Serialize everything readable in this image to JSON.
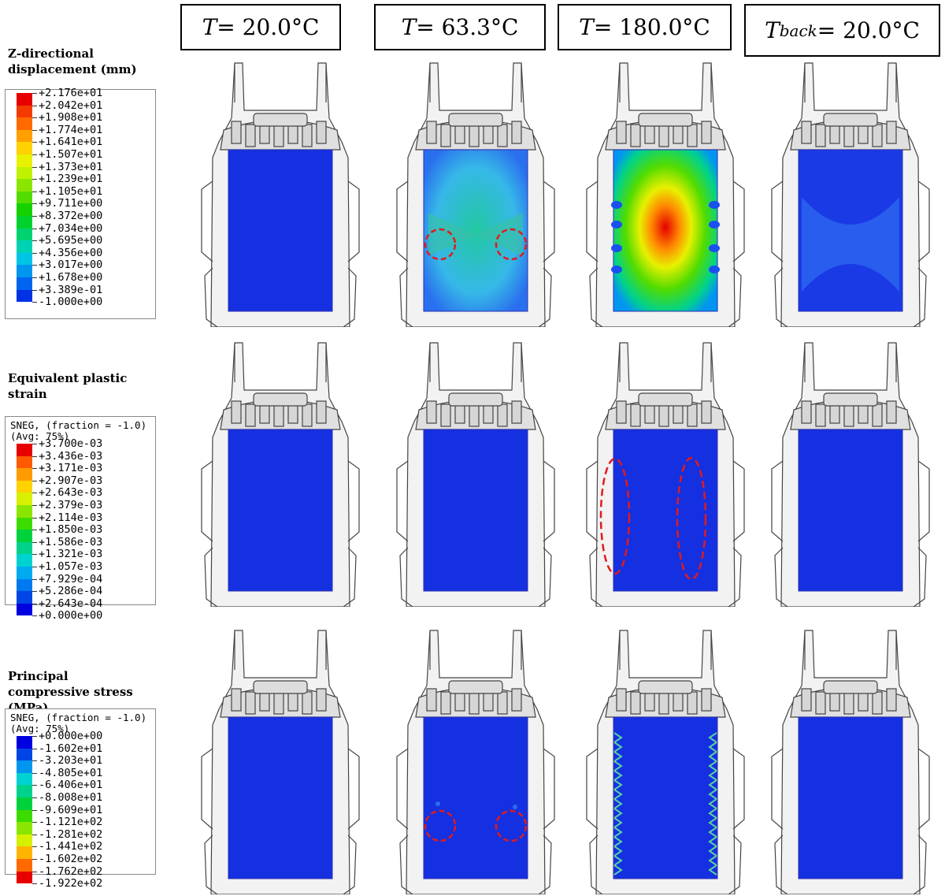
{
  "columns": [
    {
      "label_var": "T",
      "label_sub": "",
      "label_rest": " = 20.0°C"
    },
    {
      "label_var": "T",
      "label_sub": "",
      "label_rest": " = 63.3°C"
    },
    {
      "label_var": "T",
      "label_sub": "",
      "label_rest": " = 180.0°C"
    },
    {
      "label_var": "T",
      "label_sub": "back",
      "label_rest": " = 20.0°C"
    }
  ],
  "rows": [
    {
      "title": "Z-directional displacement (mm)",
      "legend": {
        "header": "",
        "values": [
          "+2.176e+01",
          "+2.042e+01",
          "+1.908e+01",
          "+1.774e+01",
          "+1.641e+01",
          "+1.507e+01",
          "+1.373e+01",
          "+1.239e+01",
          "+1.105e+01",
          "+9.711e+00",
          "+8.372e+00",
          "+7.034e+00",
          "+5.695e+00",
          "+4.356e+00",
          "+3.017e+00",
          "+1.678e+00",
          "+3.389e-01",
          "-1.000e+00"
        ],
        "colors": [
          "#e60000",
          "#f53a00",
          "#ff6a00",
          "#ffa000",
          "#ffd200",
          "#e9f000",
          "#bff200",
          "#8ae600",
          "#52dc00",
          "#14d200",
          "#00d22d",
          "#00d272",
          "#00d2b4",
          "#00c4e6",
          "#0096f0",
          "#0064f0",
          "#0032e6",
          "#0000e1"
        ]
      }
    },
    {
      "title": "Equivalent plastic strain",
      "legend": {
        "header": "SNEG, (fraction = -1.0)\n(Avg: 75%)",
        "values": [
          "+3.700e-03",
          "+3.436e-03",
          "+3.171e-03",
          "+2.907e-03",
          "+2.643e-03",
          "+2.379e-03",
          "+2.114e-03",
          "+1.850e-03",
          "+1.586e-03",
          "+1.321e-03",
          "+1.057e-03",
          "+7.929e-04",
          "+5.286e-04",
          "+2.643e-04",
          "+0.000e+00"
        ],
        "colors": [
          "#e60000",
          "#ff5a00",
          "#ff9b00",
          "#ffd200",
          "#d7f000",
          "#8ae600",
          "#3cdc00",
          "#00d23c",
          "#00d28c",
          "#00d2d2",
          "#00aaf0",
          "#0078f0",
          "#0046e6",
          "#0000e1"
        ]
      }
    },
    {
      "title": "Principal compressive stress (MPa)",
      "legend": {
        "header": "SNEG, (fraction = -1.0)\n(Avg: 75%)",
        "values": [
          "+0.000e+00",
          "-1.602e+01",
          "-3.203e+01",
          "-4.805e+01",
          "-6.406e+01",
          "-8.008e+01",
          "-9.609e+01",
          "-1.121e+02",
          "-1.281e+02",
          "-1.441e+02",
          "-1.602e+02",
          "-1.762e+02",
          "-1.922e+02"
        ],
        "colors": [
          "#0000e1",
          "#0046e6",
          "#0096f0",
          "#00d2d2",
          "#00d28c",
          "#00d23c",
          "#3cdc00",
          "#8ae600",
          "#d7f000",
          "#ffb400",
          "#ff6a00",
          "#e60000"
        ]
      }
    }
  ],
  "panels": [
    [
      {
        "field": "uniform-blue",
        "markers": "none"
      },
      {
        "field": "displacement-63",
        "markers": "circles"
      },
      {
        "field": "displacement-180",
        "markers": "none"
      },
      {
        "field": "displacement-back",
        "markers": "none"
      }
    ],
    [
      {
        "field": "uniform-blue",
        "markers": "none"
      },
      {
        "field": "uniform-blue",
        "markers": "none"
      },
      {
        "field": "uniform-blue",
        "markers": "ellipses"
      },
      {
        "field": "uniform-blue",
        "markers": "none"
      }
    ],
    [
      {
        "field": "uniform-blue",
        "markers": "none"
      },
      {
        "field": "uniform-blue-dots",
        "markers": "circles"
      },
      {
        "field": "stress-edges",
        "markers": "none"
      },
      {
        "field": "uniform-blue",
        "markers": "none"
      }
    ]
  ],
  "marker_color": "#e31a1c"
}
